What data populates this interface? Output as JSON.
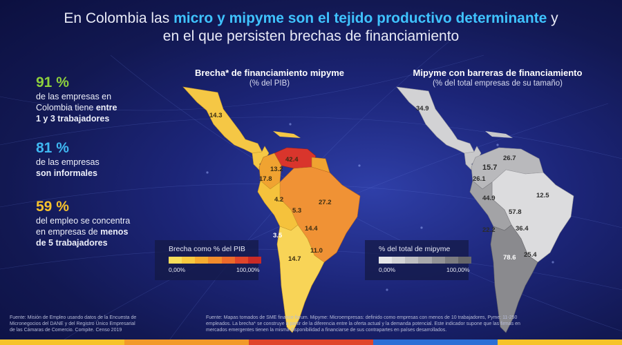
{
  "title": {
    "part1": "En Colombia las ",
    "highlight": "micro y mipyme son el tejido productivo determinante",
    "part2": " y",
    "line2": "en el que persisten brechas de financiamiento"
  },
  "stats": [
    {
      "value": "91 %",
      "color": "#8ed13c",
      "line1": "de las empresas en",
      "line2": "Colombia tiene ",
      "bold": "entre",
      "line3": "1 y 3 trabajadores"
    },
    {
      "value": "81 %",
      "color": "#3fb8f2",
      "line1": "de las empresas",
      "bold": "son informales"
    },
    {
      "value": "59 %",
      "color": "#f7c22c",
      "line1": "del empleo se concentra",
      "line2": "en empresas de ",
      "bold": "menos",
      "line3": "de 5 trabajadores"
    }
  ],
  "map_left": {
    "title": "Brecha* de financiamiento mipyme",
    "subtitle": "(% del PIB)",
    "legend_title": "Brecha como % del PIB",
    "legend_min": "0,00%",
    "legend_max": "100,00%",
    "legend_colors": [
      "#f9de5a",
      "#f8c940",
      "#f6ac30",
      "#f28c2c",
      "#ec6a2b",
      "#e0452b",
      "#c92a26"
    ],
    "labels": [
      "14.3",
      "42.4",
      "13.2",
      "17.8",
      "4.2",
      "5.3",
      "27.2",
      "14.4",
      "3.5",
      "11.0",
      "14.7"
    ],
    "colors": {
      "mexico": "#f5c745",
      "central": "#f5c745",
      "venezuela": "#d9352c",
      "colombia": "#f0a331",
      "brazil": "#f09235",
      "andes": "#f5c23c",
      "south": "#f8d457"
    }
  },
  "map_right": {
    "title": "Mipyme con barreras de financiamiento",
    "subtitle": "(% del total empresas de su tamaño)",
    "legend_title": "% del total de mipyme",
    "legend_min": "0,00%",
    "legend_max": "100,00%",
    "legend_colors": [
      "#e6e6e8",
      "#d4d4d6",
      "#bfbfc2",
      "#a9a9ac",
      "#939396",
      "#7c7c80",
      "#66666a"
    ],
    "labels": [
      "34.9",
      "26.7",
      "15.7",
      "26.1",
      "12.5",
      "44.9",
      "57.8",
      "36.4",
      "22.2",
      "78.6",
      "25.4"
    ],
    "colors": {
      "mexico": "#d2d2d4",
      "central": "#c8c8ca",
      "north": "#b9b9bc",
      "brazil": "#dcdcde",
      "andes": "#a3a3a6",
      "south": "#8a8a8e"
    }
  },
  "footnotes": {
    "left": [
      "Fuente: Misión de Empleo usando datos de la Encuesta de",
      "Micronegocios del DANE y del Registro Único Empresarial",
      "de las Cámaras de Comercio. Compite. Censo 2019"
    ],
    "right": [
      "Fuente: Mapas tomados de SME finance forum. Mipyme: Microempresas: definido como empresas con menos de 10 trabajadores, Pyme: 11-250",
      "empleados. La brecha* se construye a partir de la diferencia entre la oferta actual y la demanda potencial. Este indicador supone que las firmas en",
      "mercados emergentes tienen la misma disponibilidad a financiarse de sus contrapartes en países desarrollados."
    ]
  },
  "strip_colors": [
    "#f6c32a",
    "#f29a2a",
    "#e0452b",
    "#2b6fd6",
    "#f6c32a"
  ]
}
